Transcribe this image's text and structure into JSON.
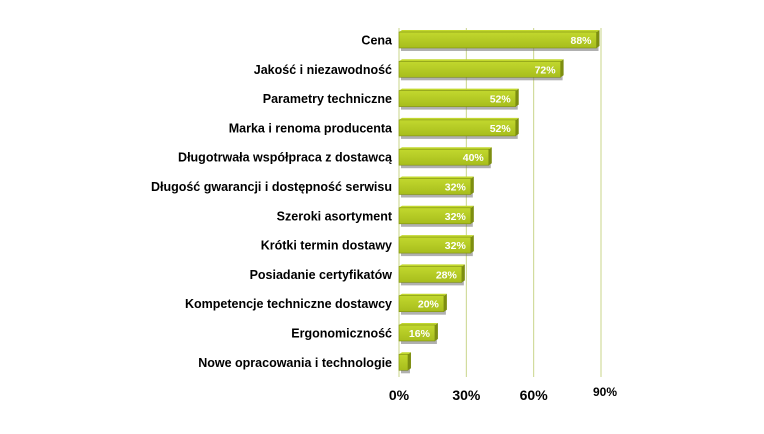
{
  "chart_data": {
    "type": "bar",
    "orientation": "horizontal",
    "categories": [
      "Cena",
      "Jakość i niezawodność",
      "Parametry techniczne",
      "Marka i renoma producenta",
      "Długotrwała współpraca z dostawcą",
      "Długość gwarancji i dostępność serwisu",
      "Szeroki asortyment",
      "Krótki termin dostawy",
      "Posiadanie certyfikatów",
      "Kompetencje techniczne dostawcy",
      "Ergonomiczność",
      "Nowe opracowania i technologie"
    ],
    "values": [
      88,
      72,
      52,
      52,
      40,
      32,
      32,
      32,
      28,
      20,
      16,
      4
    ],
    "data_labels": [
      "88%",
      "72%",
      "52%",
      "52%",
      "40%",
      "32%",
      "32%",
      "32%",
      "28%",
      "20%",
      "16%",
      ""
    ],
    "x_ticks": [
      {
        "value": 0,
        "label": "0%"
      },
      {
        "value": 30,
        "label": "30%"
      },
      {
        "value": 60,
        "label": "60%"
      },
      {
        "value": 90,
        "label": "90%"
      }
    ],
    "xlim": [
      0,
      90
    ],
    "grid": "vertical",
    "legend": "none",
    "title": "",
    "xlabel": "",
    "ylabel": "",
    "colors": {
      "bar_top": "#c2d82e",
      "bar_bottom": "#a7bd1c",
      "bar_side": "#7d8e10",
      "bar_shadow": "#6f6f6f",
      "gridline": "#c9d58a",
      "label_text": "#000000",
      "value_text": "#ffffff"
    }
  }
}
